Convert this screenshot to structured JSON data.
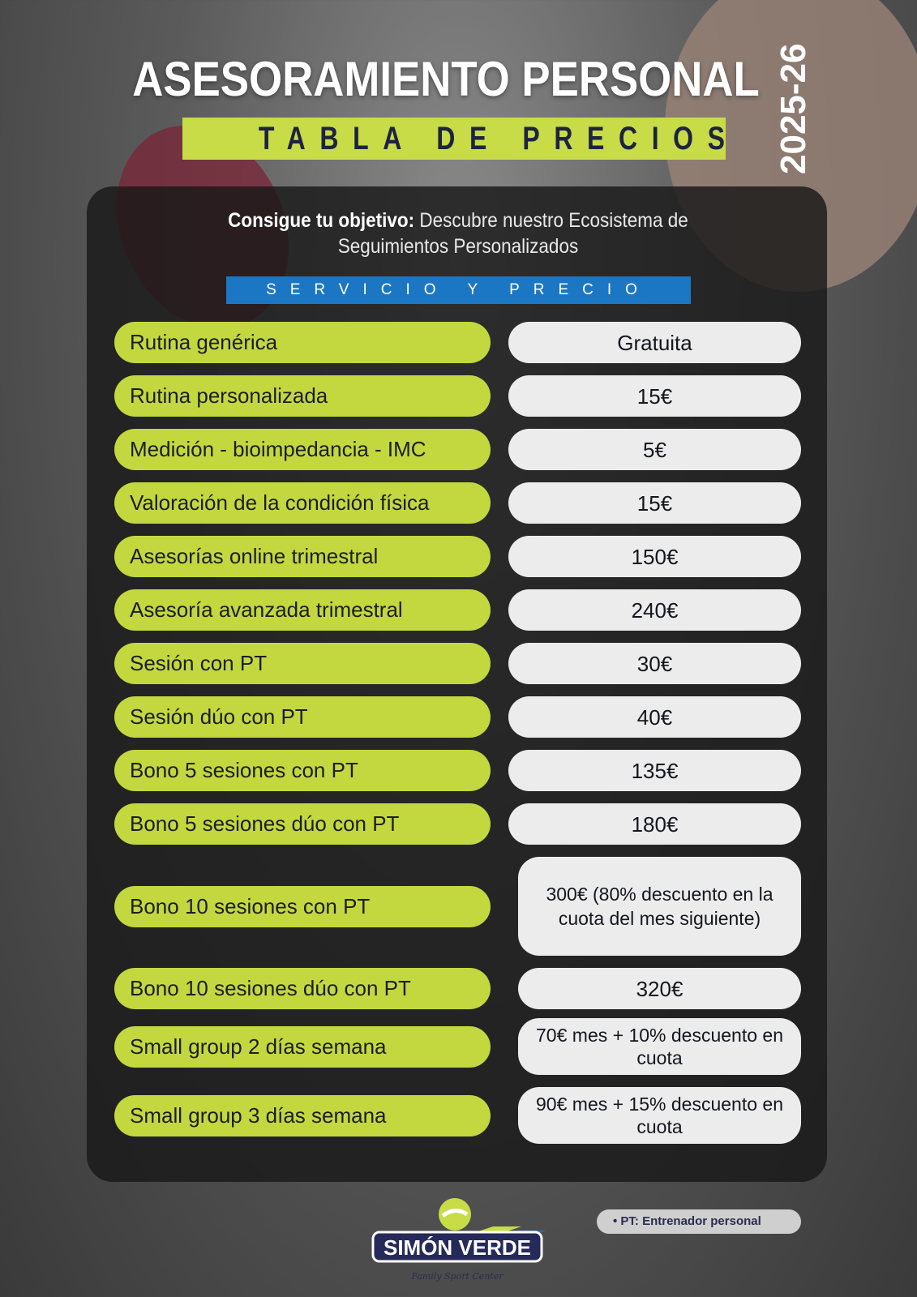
{
  "header": {
    "title": "ASESORAMIENTO PERSONAL",
    "subtitle": "TABLA DE PRECIOS",
    "season": "2025-26"
  },
  "intro": {
    "bold": "Consigue tu objetivo:",
    "text": " Descubre nuestro Ecosistema de Seguimientos Personalizados"
  },
  "band": "SERVICIO Y PRECIO",
  "rows": [
    {
      "service": "Rutina genérica",
      "price": "Gratuita"
    },
    {
      "service": "Rutina personalizada",
      "price": "15€"
    },
    {
      "service": "Medición - bioimpedancia - IMC",
      "price": "5€"
    },
    {
      "service": "Valoración de la condición física",
      "price": "15€"
    },
    {
      "service": "Asesorías online trimestral",
      "price": "150€"
    },
    {
      "service": "Asesoría avanzada trimestral",
      "price": "240€"
    },
    {
      "service": "Sesión con PT",
      "price": "30€"
    },
    {
      "service": "Sesión dúo con PT",
      "price": "40€"
    },
    {
      "service": "Bono 5 sesiones con PT",
      "price": "135€"
    },
    {
      "service": "Bono 5 sesiones dúo con PT",
      "price": "180€"
    },
    {
      "service": "Bono 10 sesiones con PT",
      "price": "300€ (80% descuento en la cuota del mes siguiente)"
    },
    {
      "service": "Bono 10 sesiones dúo con PT",
      "price": "320€"
    },
    {
      "service": "Small group 2 días semana",
      "price": "70€ mes + 10% descuento en cuota"
    },
    {
      "service": "Small group 3 días semana",
      "price": "90€ mes + 15% descuento en cuota"
    }
  ],
  "footnote": "PT: Entrenador personal",
  "logo": {
    "name": "SIMÓN VERDE",
    "tagline": "Family Sport Center"
  },
  "colors": {
    "lime": "#c3d83e",
    "blue": "#1b77c4",
    "navy": "#1e2340"
  }
}
